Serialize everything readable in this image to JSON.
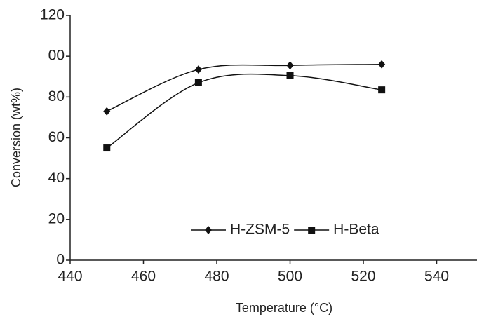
{
  "chart_data": {
    "type": "line",
    "x_label": "Temperature (°C)",
    "y_label": "Conversion (wt%)",
    "x": [
      450,
      475,
      500,
      525
    ],
    "series": [
      {
        "name": "H-ZSM-5",
        "color": "#111111",
        "marker": "diamond",
        "values": [
          73,
          93.5,
          95.5,
          96
        ]
      },
      {
        "name": "H-Beta",
        "color": "#111111",
        "marker": "square",
        "values": [
          55,
          87,
          90.5,
          83.5
        ]
      }
    ],
    "xlim": [
      440,
      551
    ],
    "xticks": [
      440,
      460,
      480,
      500,
      520,
      540
    ],
    "ylim": [
      0,
      120
    ],
    "yticks": [
      0,
      20,
      40,
      60,
      80,
      {
        "value": 100,
        "label": "00"
      },
      120
    ],
    "grid": false,
    "legend": "bottom"
  }
}
